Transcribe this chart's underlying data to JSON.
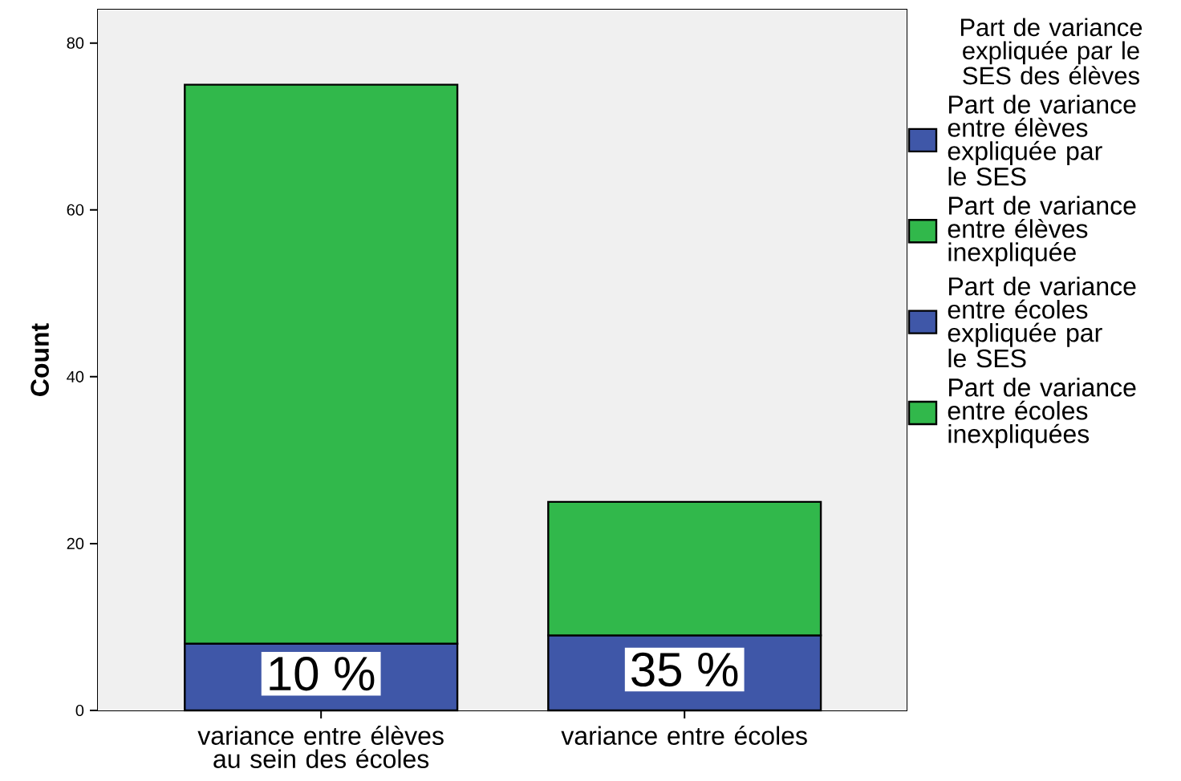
{
  "chart_data": {
    "type": "bar",
    "stacked": true,
    "ylabel": "Count",
    "legend_title": "Part de variance expliquée par le SES des élèves",
    "categories": [
      "variance entre élèves au sein des écoles",
      "variance entre écoles"
    ],
    "series": [
      {
        "name": "Part de variance entre élèves expliquée par le SES",
        "color": "#3f57a8",
        "values": [
          8,
          null
        ]
      },
      {
        "name": "Part de variance entre élèves inexpliquée",
        "color": "#31b84b",
        "values": [
          67,
          null
        ]
      },
      {
        "name": "Part de variance entre écoles expliquée par le SES",
        "color": "#3f57a8",
        "values": [
          null,
          9
        ]
      },
      {
        "name": "Part de variance entre écoles inexpliquées",
        "color": "#31b84b",
        "values": [
          null,
          16
        ]
      }
    ],
    "annotations": [
      "10 %",
      "35 %"
    ],
    "ylim": [
      0,
      84
    ],
    "yticks": [
      0,
      20,
      40,
      60,
      80
    ],
    "legend": "right"
  }
}
